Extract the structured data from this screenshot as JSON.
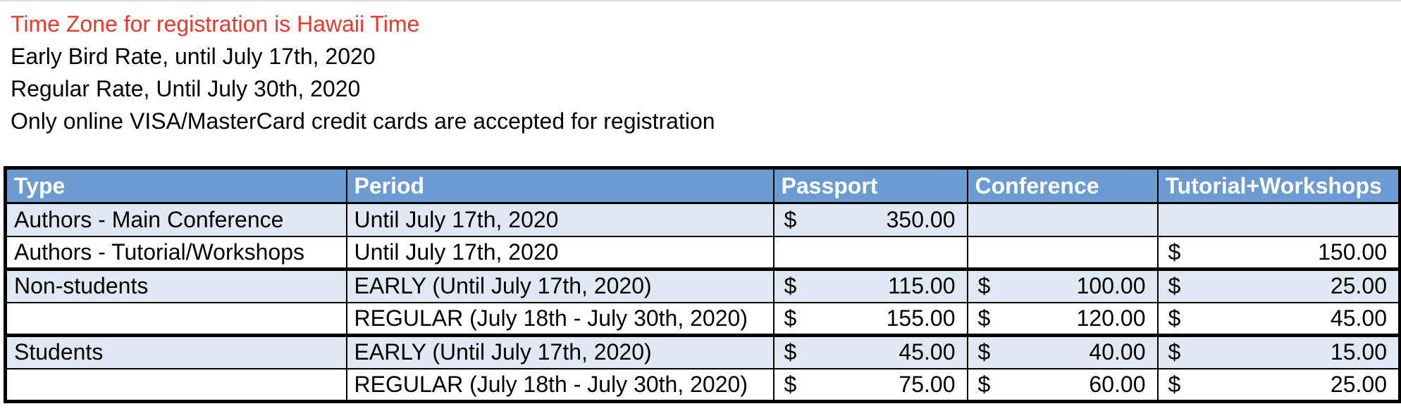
{
  "notes": {
    "timezone": "Time Zone for registration is Hawaii Time",
    "early_bird": "Early Bird Rate, until July 17th, 2020",
    "regular": "Regular Rate, Until July 30th, 2020",
    "payment": "Only online VISA/MasterCard credit cards are accepted for registration"
  },
  "colors": {
    "alert_text": "#e8392f",
    "header_bg": "#6b9bd1",
    "shaded_row_bg": "#dfe8f3"
  },
  "table": {
    "headers": {
      "type": "Type",
      "period": "Period",
      "passport": "Passport",
      "conference": "Conference",
      "tutorial": "Tutorial+Workshops"
    },
    "currency": "$",
    "rows": [
      {
        "type": "Authors - Main Conference",
        "period": "Until July 17th, 2020",
        "passport": "350.00",
        "conference": "",
        "tutorial": ""
      },
      {
        "type": "Authors - Tutorial/Workshops",
        "period": "Until July 17th, 2020",
        "passport": "",
        "conference": "",
        "tutorial": "150.00"
      },
      {
        "type": "Non-students",
        "period": "EARLY (Until July 17th, 2020)",
        "passport": "115.00",
        "conference": "100.00",
        "tutorial": "25.00"
      },
      {
        "type": "",
        "period": "REGULAR (July 18th - July 30th, 2020)",
        "passport": "155.00",
        "conference": "120.00",
        "tutorial": "45.00"
      },
      {
        "type": "Students",
        "period": "EARLY (Until July 17th, 2020)",
        "passport": "45.00",
        "conference": "40.00",
        "tutorial": "15.00"
      },
      {
        "type": "",
        "period": "REGULAR (July 18th - July 30th, 2020)",
        "passport": "75.00",
        "conference": "60.00",
        "tutorial": "25.00"
      }
    ]
  }
}
